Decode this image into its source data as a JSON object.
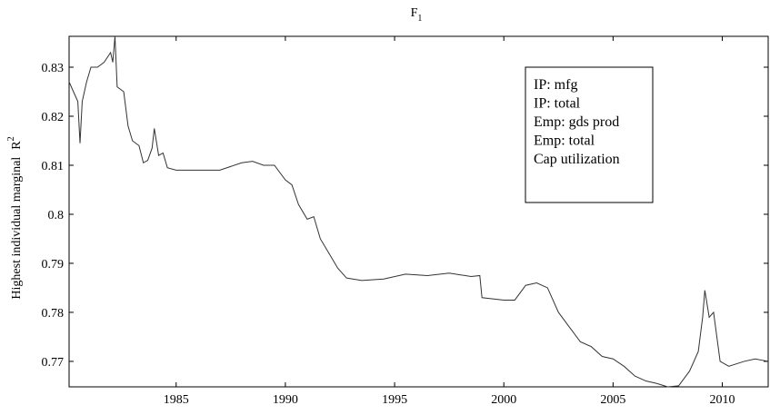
{
  "chart_data": {
    "type": "line",
    "title": "F",
    "title_subscript": "1",
    "ylabel": "Highest individual marginal",
    "ylabel_sup": "R",
    "ylabel_sup_exp": "2",
    "x": [
      1980.1,
      1980.3,
      1980.5,
      1980.6,
      1980.7,
      1980.9,
      1981.1,
      1981.4,
      1981.7,
      1982.0,
      1982.1,
      1982.2,
      1982.3,
      1982.6,
      1982.8,
      1983.0,
      1983.3,
      1983.5,
      1983.7,
      1983.9,
      1984.0,
      1984.2,
      1984.4,
      1984.6,
      1985.0,
      1986.0,
      1987.0,
      1988.0,
      1988.5,
      1989.0,
      1989.5,
      1990.0,
      1990.3,
      1990.6,
      1991.0,
      1991.3,
      1991.6,
      1992.0,
      1992.4,
      1992.8,
      1993.5,
      1994.5,
      1995.5,
      1996.5,
      1997.5,
      1998.5,
      1998.9,
      1999.0,
      2000.0,
      2000.5,
      2001.0,
      2001.5,
      2002.0,
      2002.5,
      2003.0,
      2003.5,
      2004.0,
      2004.5,
      2005.0,
      2005.5,
      2006.0,
      2006.5,
      2007.0,
      2007.5,
      2008.0,
      2008.5,
      2008.9,
      2009.1,
      2009.2,
      2009.4,
      2009.6,
      2009.9,
      2010.3,
      2011.0,
      2011.5,
      2012.1
    ],
    "series": [
      {
        "name": "F1",
        "color": "#333333",
        "values": [
          0.827,
          0.825,
          0.823,
          0.8145,
          0.823,
          0.827,
          0.83,
          0.83,
          0.831,
          0.833,
          0.831,
          0.8363,
          0.826,
          0.825,
          0.818,
          0.815,
          0.814,
          0.8105,
          0.811,
          0.8135,
          0.8175,
          0.812,
          0.8125,
          0.8095,
          0.809,
          0.809,
          0.809,
          0.8105,
          0.8108,
          0.81,
          0.81,
          0.807,
          0.806,
          0.802,
          0.799,
          0.7995,
          0.795,
          0.792,
          0.789,
          0.787,
          0.7865,
          0.7868,
          0.7878,
          0.7875,
          0.788,
          0.7873,
          0.7875,
          0.783,
          0.7825,
          0.7825,
          0.7855,
          0.786,
          0.785,
          0.78,
          0.777,
          0.774,
          0.773,
          0.771,
          0.7705,
          0.769,
          0.767,
          0.766,
          0.7655,
          0.7648,
          0.765,
          0.768,
          0.772,
          0.779,
          0.7845,
          0.779,
          0.78,
          0.77,
          0.769,
          0.77,
          0.7705,
          0.77
        ]
      }
    ],
    "legend_entries": [
      "IP: mfg",
      "IP: total",
      "Emp: gds prod",
      "Emp: total",
      "Cap utilization"
    ],
    "xlim": [
      1980.1,
      2012.1
    ],
    "xticks": [
      1985,
      1990,
      1995,
      2000,
      2005,
      2010
    ],
    "ylim": [
      0.7648,
      0.8363
    ],
    "yticks": [
      0.77,
      0.78,
      0.79,
      {
        "value": 0.8,
        "label": "0.8"
      },
      0.81,
      0.82,
      0.83
    ]
  }
}
